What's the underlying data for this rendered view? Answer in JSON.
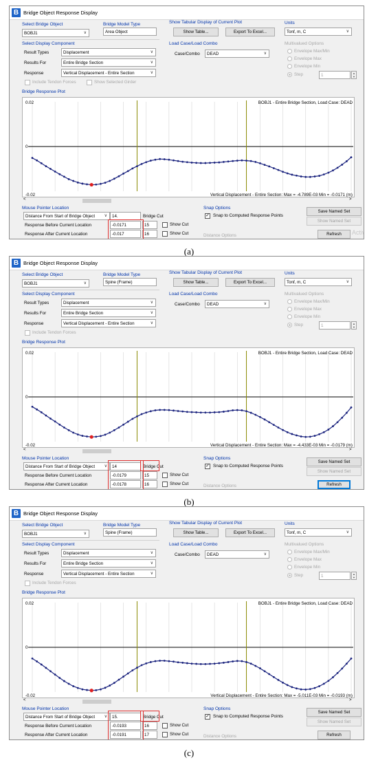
{
  "panels": [
    {
      "caption": "(a)",
      "window_title": "Bridge Object Response Display",
      "select_bridge_object": {
        "label": "Select Bridge Object",
        "value": "BOBJ1"
      },
      "bridge_model_type": {
        "label": "Bridge Model Type",
        "value": "Area Object"
      },
      "tabular": {
        "label": "Show Tabular Display of Current Plot",
        "show_table": "Show Table...",
        "export": "Export To Excel..."
      },
      "units": {
        "label": "Units",
        "value": "Tonf, m, C"
      },
      "display_component": {
        "label": "Select Display Component",
        "result_types_label": "Result Types",
        "result_types": "Displacement",
        "results_for_label": "Results For",
        "results_for": "Entire Bridge Section",
        "response_label": "Response",
        "response": "Vertical Displacement - Entire Section",
        "tendon": "Include Tendon Forces",
        "girder": "Show Selected Girder",
        "show_girder": true
      },
      "load_case": {
        "label": "Load Case/Load Combo",
        "case_label": "Case/Combo",
        "value": "DEAD"
      },
      "multivalued": {
        "label": "Multivalued Options",
        "opt1": "Envelope Max/Min",
        "opt2": "Envelope Max",
        "opt3": "Envelope Min",
        "opt4": "Step",
        "step": "1"
      },
      "plot": {
        "label": "Bridge Response Plot",
        "header": "BOBJ1 - Entire Bridge Section,  Load Case: DEAD",
        "ytop": "0.02",
        "ymid": "0",
        "ybot": "-0.02",
        "footer": "Vertical Displacement - Entire Section:  Max = -4.789E-03    Min = -0.0171  (m)"
      },
      "mouse": {
        "label": "Mouse Pointer Location",
        "combo": "Distance From Start of Bridge Object",
        "distance": "14.",
        "bridge_cut": "Bridge Cut",
        "before_label": "Response Before Current Location",
        "before_value": "-0.0171",
        "before_cut": "15",
        "after_label": "Response After Current Location",
        "after_value": "-0.017",
        "after_cut": "16",
        "show_cut": "Show Cut"
      },
      "snap": {
        "label": "Snap Options",
        "check": "Snap to Computed Response Points",
        "distance": "Distance Options"
      },
      "buttons": {
        "save": "Save Named Set",
        "show": "Show Named Set",
        "refresh": "Refresh"
      },
      "refresh_focused": false,
      "watermark": "Activ",
      "chart_data": {
        "type": "line",
        "ylim": [
          -0.02,
          0.02
        ],
        "x": [
          0,
          1,
          2,
          3,
          4,
          5,
          6,
          7,
          8,
          9,
          10,
          11,
          12,
          13,
          14,
          15,
          16,
          17,
          18,
          19,
          20,
          21,
          22,
          23,
          24,
          25,
          26,
          27,
          28,
          29,
          30,
          31,
          32,
          33,
          34,
          35,
          36,
          37,
          38,
          39,
          40,
          41,
          42,
          43,
          44,
          45,
          46,
          47,
          48,
          49,
          50,
          51,
          52,
          53,
          54,
          55,
          56,
          57,
          58,
          59,
          60,
          61,
          62,
          63,
          64,
          65,
          66,
          67,
          68,
          69,
          70
        ],
        "y": [
          -0.0051,
          -0.0062,
          -0.0075,
          -0.0088,
          -0.01,
          -0.0112,
          -0.0124,
          -0.0135,
          -0.0146,
          -0.0154,
          -0.0161,
          -0.0166,
          -0.0169,
          -0.0171,
          -0.017,
          -0.0167,
          -0.0162,
          -0.0154,
          -0.0144,
          -0.0133,
          -0.0121,
          -0.011,
          -0.0098,
          -0.0088,
          -0.0078,
          -0.007,
          -0.0063,
          -0.0059,
          -0.0056,
          -0.0057,
          -0.0059,
          -0.0062,
          -0.0065,
          -0.0068,
          -0.007,
          -0.0072,
          -0.0073,
          -0.0074,
          -0.0074,
          -0.0073,
          -0.0072,
          -0.0071,
          -0.0069,
          -0.0067,
          -0.0065,
          -0.0063,
          -0.0062,
          -0.0063,
          -0.0065,
          -0.0069,
          -0.0075,
          -0.0082,
          -0.0089,
          -0.0097,
          -0.0105,
          -0.0113,
          -0.012,
          -0.0126,
          -0.013,
          -0.0134,
          -0.0136,
          -0.0136,
          -0.0134,
          -0.0131,
          -0.0125,
          -0.0117,
          -0.0107,
          -0.0095,
          -0.0081,
          -0.0066,
          -0.0048
        ],
        "marker_index": 13,
        "vlines": [
          23,
          47
        ]
      }
    },
    {
      "caption": "(b)",
      "window_title": "Bridge Object Response Display",
      "select_bridge_object": {
        "label": "Select Bridge Object",
        "value": "BOBJ1"
      },
      "bridge_model_type": {
        "label": "Bridge Model Type",
        "value": "Spine (Frame)"
      },
      "tabular": {
        "label": "Show Tabular Display of Current Plot",
        "show_table": "Show Table...",
        "export": "Export To Excel..."
      },
      "units": {
        "label": "Units",
        "value": "Tonf, m, C"
      },
      "display_component": {
        "label": "Select Display Component",
        "result_types_label": "Result Types",
        "result_types": "Displacement",
        "results_for_label": "Results For",
        "results_for": "Entire Bridge Section",
        "response_label": "Response",
        "response": "Vertical Displacement - Entire Section",
        "tendon": "Include Tendon Forces",
        "girder": "",
        "show_girder": false
      },
      "load_case": {
        "label": "Load Case/Load Combo",
        "case_label": "Case/Combo",
        "value": "DEAD"
      },
      "multivalued": {
        "label": "Multivalued Options",
        "opt1": "Envelope Max/Min",
        "opt2": "Envelope Max",
        "opt3": "Envelope Min",
        "opt4": "Step",
        "step": "1"
      },
      "plot": {
        "label": "Bridge Response Plot",
        "header": "BOBJ1 - Entire Bridge Section,  Load Case: DEAD",
        "ytop": "0.02",
        "ymid": "0",
        "ybot": "-0.02",
        "footer": "Vertical Displacement - Entire Section:  Max = -4.433E-03    Min = -0.0179  (m)"
      },
      "mouse": {
        "label": "Mouse Pointer Location",
        "combo": "Distance From Start of Bridge Object",
        "distance": "14",
        "bridge_cut": "Bridge Cut",
        "before_label": "Response Before Current Location",
        "before_value": "-0.0179",
        "before_cut": "15",
        "after_label": "Response After Current Location",
        "after_value": "-0.0178",
        "after_cut": "16",
        "show_cut": "Show Cut"
      },
      "snap": {
        "label": "Snap Options",
        "check": "Snap to Computed Response Points",
        "distance": "Distance Options"
      },
      "buttons": {
        "save": "Save Named Set",
        "show": "Show Named Set",
        "refresh": "Refresh"
      },
      "refresh_focused": true,
      "watermark": "",
      "chart_data": {
        "type": "line",
        "ylim": [
          -0.02,
          0.02
        ],
        "x": [
          0,
          1,
          2,
          3,
          4,
          5,
          6,
          7,
          8,
          9,
          10,
          11,
          12,
          13,
          14,
          15,
          16,
          17,
          18,
          19,
          20,
          21,
          22,
          23,
          24,
          25,
          26,
          27,
          28,
          29,
          30,
          31,
          32,
          33,
          34,
          35,
          36,
          37,
          38,
          39,
          40,
          41,
          42,
          43,
          44,
          45,
          46,
          47,
          48,
          49,
          50,
          51,
          52,
          53,
          54,
          55,
          56,
          57,
          58,
          59,
          60,
          61,
          62,
          63,
          64,
          65,
          66,
          67,
          68,
          69,
          70
        ],
        "y": [
          -0.0044,
          -0.0056,
          -0.0069,
          -0.0083,
          -0.0097,
          -0.011,
          -0.0124,
          -0.0137,
          -0.0149,
          -0.016,
          -0.0168,
          -0.0174,
          -0.0177,
          -0.0179,
          -0.0178,
          -0.0175,
          -0.0169,
          -0.016,
          -0.0149,
          -0.0137,
          -0.0124,
          -0.0111,
          -0.0098,
          -0.0087,
          -0.0077,
          -0.007,
          -0.0064,
          -0.006,
          -0.0058,
          -0.0058,
          -0.0059,
          -0.0061,
          -0.0063,
          -0.0065,
          -0.0067,
          -0.0068,
          -0.0069,
          -0.007,
          -0.007,
          -0.007,
          -0.0069,
          -0.0068,
          -0.0066,
          -0.0063,
          -0.006,
          -0.0059,
          -0.006,
          -0.0064,
          -0.0071,
          -0.008,
          -0.009,
          -0.0101,
          -0.0113,
          -0.0125,
          -0.0137,
          -0.0148,
          -0.0158,
          -0.0166,
          -0.0172,
          -0.0177,
          -0.0179,
          -0.0178,
          -0.0174,
          -0.0167,
          -0.0158,
          -0.0146,
          -0.0131,
          -0.0113,
          -0.0093,
          -0.0071,
          -0.0047
        ],
        "marker_index": 13,
        "vlines": [
          23,
          47
        ]
      }
    },
    {
      "caption": "(c)",
      "window_title": "Bridge Object Response Display",
      "select_bridge_object": {
        "label": "Select Bridge Object",
        "value": "BOBJ1"
      },
      "bridge_model_type": {
        "label": "Bridge Model Type",
        "value": "Spine (Frame)"
      },
      "tabular": {
        "label": "Show Tabular Display of Current Plot",
        "show_table": "Show Table...",
        "export": "Export To Excel..."
      },
      "units": {
        "label": "Units",
        "value": "Tonf, m, C"
      },
      "display_component": {
        "label": "Select Display Component",
        "result_types_label": "Result Types",
        "result_types": "Displacement",
        "results_for_label": "Results For",
        "results_for": "Entire Bridge Section",
        "response_label": "Response",
        "response": "Vertical Displacement - Entire Section",
        "tendon": "Include Tendon Forces",
        "girder": "",
        "show_girder": false
      },
      "load_case": {
        "label": "Load Case/Load Combo",
        "case_label": "Case/Combo",
        "value": "DEAD"
      },
      "multivalued": {
        "label": "Multivalued Options",
        "opt1": "Envelope Max/Min",
        "opt2": "Envelope Max",
        "opt3": "Envelope Min",
        "opt4": "Step",
        "step": "1"
      },
      "plot": {
        "label": "Bridge Response Plot",
        "header": "BOBJ1 - Entire Bridge Section,  Load Case: DEAD",
        "ytop": "0.02",
        "ymid": "0",
        "ybot": "-0.02",
        "footer": "Vertical Displacement - Entire Section:  Max = -5.011E-03    Min = -0.0193  (m)"
      },
      "mouse": {
        "label": "Mouse Pointer Location",
        "combo": "Distance From Start of Bridge Object",
        "distance": "15.",
        "bridge_cut": "Bridge Cut",
        "before_label": "Response Before Current Location",
        "before_value": "-0.0193",
        "before_cut": "16",
        "after_label": "Response After Current Location",
        "after_value": "-0.0191",
        "after_cut": "17",
        "show_cut": "Show Cut"
      },
      "snap": {
        "label": "Snap Options",
        "check": "Snap to Computed Response Points",
        "distance": "Distance Options"
      },
      "buttons": {
        "save": "Save Named Set",
        "show": "Show Named Set",
        "refresh": "Refresh"
      },
      "refresh_focused": false,
      "watermark": "",
      "chart_data": {
        "type": "line",
        "ylim": [
          -0.02,
          0.02
        ],
        "x": [
          0,
          1,
          2,
          3,
          4,
          5,
          6,
          7,
          8,
          9,
          10,
          11,
          12,
          13,
          14,
          15,
          16,
          17,
          18,
          19,
          20,
          21,
          22,
          23,
          24,
          25,
          26,
          27,
          28,
          29,
          30,
          31,
          32,
          33,
          34,
          35,
          36,
          37,
          38,
          39,
          40,
          41,
          42,
          43,
          44,
          45,
          46,
          47,
          48,
          49,
          50,
          51,
          52,
          53,
          54,
          55,
          56,
          57,
          58,
          59,
          60,
          61,
          62,
          63,
          64,
          65,
          66,
          67,
          68,
          69,
          70
        ],
        "y": [
          -0.005,
          -0.0063,
          -0.0077,
          -0.0092,
          -0.0107,
          -0.0122,
          -0.0137,
          -0.0151,
          -0.0163,
          -0.0174,
          -0.0182,
          -0.0188,
          -0.0191,
          -0.0193,
          -0.0192,
          -0.0188,
          -0.0181,
          -0.0171,
          -0.0159,
          -0.0145,
          -0.0131,
          -0.0117,
          -0.0103,
          -0.0091,
          -0.008,
          -0.0072,
          -0.0066,
          -0.0062,
          -0.006,
          -0.006,
          -0.0062,
          -0.0064,
          -0.0067,
          -0.0069,
          -0.0071,
          -0.0073,
          -0.0074,
          -0.0075,
          -0.0075,
          -0.0074,
          -0.0073,
          -0.0071,
          -0.0069,
          -0.0066,
          -0.0063,
          -0.0061,
          -0.0062,
          -0.0066,
          -0.0073,
          -0.0083,
          -0.0094,
          -0.0107,
          -0.012,
          -0.0133,
          -0.0146,
          -0.0158,
          -0.0169,
          -0.0178,
          -0.0184,
          -0.0188,
          -0.0189,
          -0.0187,
          -0.0182,
          -0.0174,
          -0.0163,
          -0.015,
          -0.0134,
          -0.0115,
          -0.0095,
          -0.0073,
          -0.005
        ],
        "marker_index": 13,
        "vlines": [
          23,
          47
        ]
      }
    }
  ]
}
